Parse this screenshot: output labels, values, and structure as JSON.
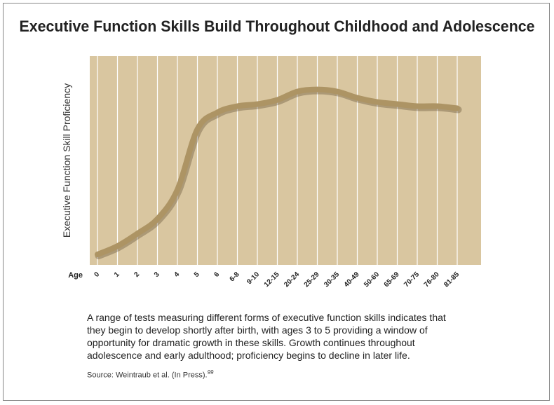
{
  "chart_data": {
    "type": "line",
    "title": "Executive Function Skills Build Throughout Childhood and Adolescence",
    "x_label": "Age",
    "y_label": "Executive Function Skill Proficiency",
    "categories": [
      "0",
      "1",
      "2",
      "3",
      "4",
      "5",
      "6",
      "6-8",
      "9-10",
      "12-15",
      "20-24",
      "25-29",
      "30-35",
      "40-49",
      "50-60",
      "65-69",
      "70-75",
      "76-80",
      "81-85"
    ],
    "values": [
      5,
      9,
      15,
      22,
      36,
      65,
      73,
      76,
      77,
      79,
      83,
      84,
      83,
      80,
      78,
      77,
      76,
      76,
      75
    ],
    "color": "#ad9464",
    "ylim": [
      0,
      100
    ],
    "grid": true,
    "caption": "A range of tests measuring different forms of executive function skills indicates that they begin to develop shortly after birth, with ages 3 to 5 providing a window of opportunity for dramatic growth in these skills. Growth continues throughout adolescence and early adulthood; proficiency begins to decline in later life.",
    "source": "Source: Weintraub et al. (In Press).",
    "footnote": "99"
  }
}
